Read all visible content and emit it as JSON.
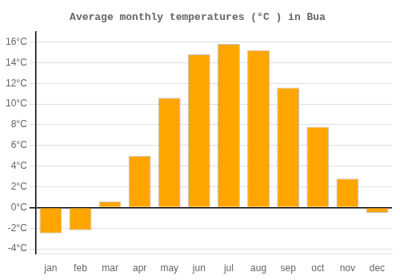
{
  "chart_data": {
    "type": "bar",
    "title": "Average monthly temperatures (°C ) in Bua",
    "categories": [
      "jan",
      "feb",
      "mar",
      "apr",
      "may",
      "jun",
      "jul",
      "aug",
      "sep",
      "oct",
      "nov",
      "dec"
    ],
    "values": [
      -2.5,
      -2.2,
      0.6,
      5.0,
      10.6,
      14.8,
      15.8,
      15.2,
      11.6,
      7.8,
      2.8,
      -0.5
    ],
    "color": "#FFA500",
    "ylim": [
      -4.5,
      17.0
    ],
    "yticks": [
      {
        "value": -4,
        "label": "-4°C"
      },
      {
        "value": -2,
        "label": "-2°C"
      },
      {
        "value": 0,
        "label": "0°C"
      },
      {
        "value": 2,
        "label": "2°C"
      },
      {
        "value": 4,
        "label": "4°C"
      },
      {
        "value": 6,
        "label": "6°C"
      },
      {
        "value": 8,
        "label": "8°C"
      },
      {
        "value": 10,
        "label": "10°C"
      },
      {
        "value": 12,
        "label": "12°C"
      },
      {
        "value": 14,
        "label": "14°C"
      },
      {
        "value": 16,
        "label": "16°C"
      }
    ],
    "grid": true
  }
}
